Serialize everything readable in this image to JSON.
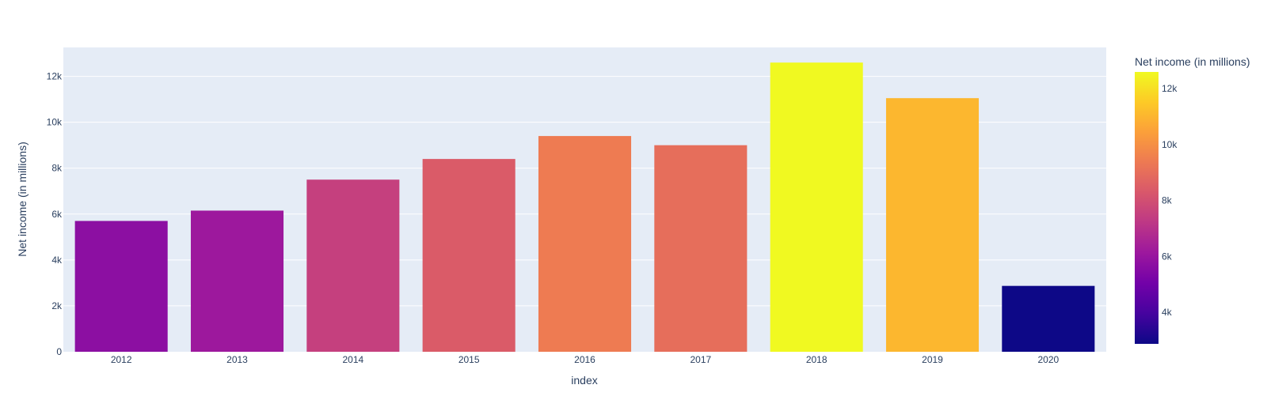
{
  "chart_data": {
    "type": "bar",
    "title": "",
    "xlabel": "index",
    "ylabel": "Net income (in millions)",
    "categories": [
      "2012",
      "2013",
      "2014",
      "2015",
      "2016",
      "2017",
      "2018",
      "2019",
      "2020"
    ],
    "values": [
      5700,
      6150,
      7500,
      8400,
      9400,
      9000,
      12600,
      11050,
      2870
    ],
    "ylim": [
      0,
      13260
    ],
    "yticks": [
      0,
      2000,
      4000,
      6000,
      8000,
      10000,
      12000
    ],
    "ytick_labels": [
      "0",
      "2k",
      "4k",
      "6k",
      "8k",
      "10k",
      "12k"
    ],
    "grid": true,
    "plot_background": "#e5ecf6",
    "colorbar": {
      "title": "Net income (in millions)",
      "range": [
        2870,
        12600
      ],
      "ticks": [
        4000,
        6000,
        8000,
        10000,
        12000
      ],
      "tick_labels": [
        "4k",
        "6k",
        "8k",
        "10k",
        "12k"
      ],
      "colorscale": [
        "#0d0887",
        "#46039f",
        "#7201a8",
        "#9c179e",
        "#bd3786",
        "#d8576b",
        "#ed7953",
        "#fb9f3a",
        "#fdca26",
        "#f0f921"
      ]
    }
  }
}
